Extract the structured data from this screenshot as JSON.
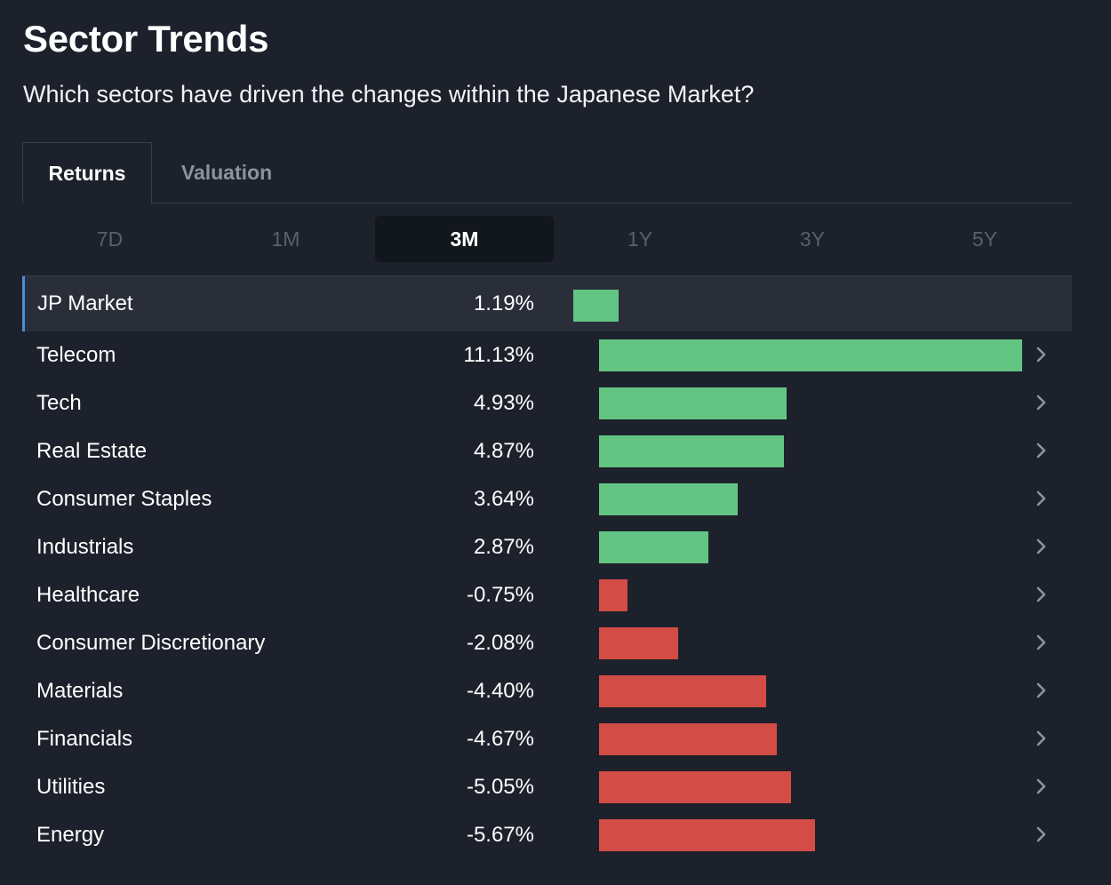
{
  "header": {
    "title": "Sector Trends",
    "subtitle": "Which sectors have driven the changes within the Japanese Market?"
  },
  "tabs": [
    {
      "label": "Returns",
      "active": true
    },
    {
      "label": "Valuation",
      "active": false
    }
  ],
  "periods": [
    {
      "label": "7D",
      "active": false
    },
    {
      "label": "1M",
      "active": false
    },
    {
      "label": "3M",
      "active": true
    },
    {
      "label": "1Y",
      "active": false
    },
    {
      "label": "3Y",
      "active": false
    },
    {
      "label": "5Y",
      "active": false
    }
  ],
  "colors": {
    "positive": "#63c584",
    "negative": "#d34c46",
    "accent": "#4a8fd9",
    "background": "#1c212b"
  },
  "chart_data": {
    "type": "bar",
    "categories": [
      "JP Market",
      "Telecom",
      "Tech",
      "Real Estate",
      "Consumer Staples",
      "Industrials",
      "Healthcare",
      "Consumer Discretionary",
      "Materials",
      "Financials",
      "Utilities",
      "Energy"
    ],
    "values": [
      1.19,
      11.13,
      4.93,
      4.87,
      3.64,
      2.87,
      -0.75,
      -2.08,
      -4.4,
      -4.67,
      -5.05,
      -5.67
    ],
    "value_labels": [
      "1.19%",
      "11.13%",
      "4.93%",
      "4.87%",
      "3.64%",
      "2.87%",
      "-0.75%",
      "-2.08%",
      "-4.40%",
      "-4.67%",
      "-5.05%",
      "-5.67%"
    ],
    "unit": "%"
  },
  "market_row": {
    "name": "JP Market",
    "value": "1.19%",
    "chevron": false
  },
  "row_icon": "chevron-right-icon"
}
